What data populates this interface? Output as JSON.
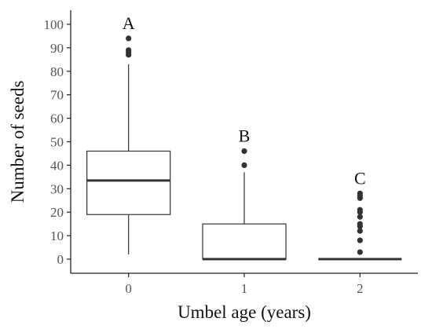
{
  "chart_data": {
    "type": "box",
    "xlabel": "Umbel age (years)",
    "ylabel": "Number of seeds",
    "ylim": [
      -6,
      106
    ],
    "yticks": [
      0,
      10,
      20,
      30,
      40,
      50,
      60,
      70,
      80,
      90,
      100
    ],
    "grid": false,
    "categories": [
      "0",
      "1",
      "2"
    ],
    "boxes": [
      {
        "category": "0",
        "whisker_low": 2,
        "q1": 19,
        "median": 33.5,
        "q3": 46,
        "whisker_high": 83,
        "outliers": [
          87,
          88,
          89,
          94
        ],
        "letter": "A"
      },
      {
        "category": "1",
        "whisker_low": 0,
        "q1": 0,
        "median": 0,
        "q3": 15,
        "whisker_high": 37,
        "outliers": [
          40,
          46
        ],
        "letter": "B"
      },
      {
        "category": "2",
        "whisker_low": 0,
        "q1": 0,
        "median": 0,
        "q3": 0,
        "whisker_high": 0,
        "outliers": [
          3,
          8,
          12,
          14,
          15,
          18,
          20,
          21,
          26,
          27,
          28
        ],
        "letter": "C"
      }
    ]
  }
}
